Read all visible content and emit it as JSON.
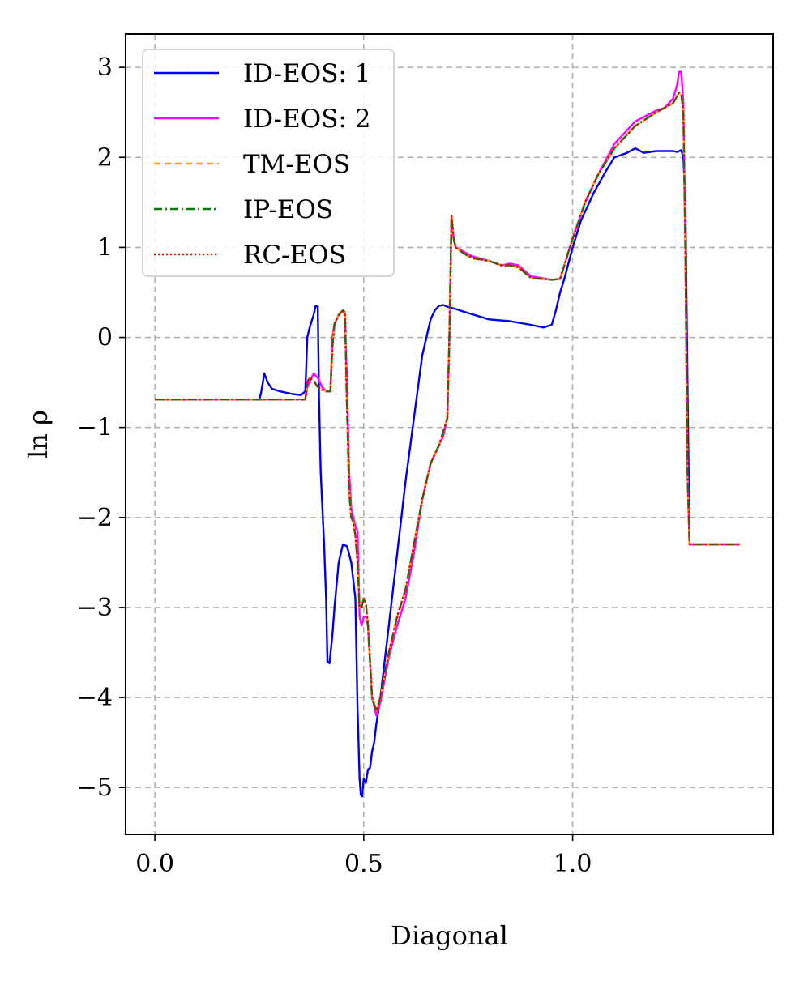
{
  "chart_data": {
    "type": "line",
    "title": "",
    "xlabel": "Diagonal",
    "ylabel": "ln ρ",
    "xlim": [
      -0.07,
      1.48
    ],
    "ylim": [
      -5.52,
      3.37
    ],
    "xticks": [
      0.0,
      0.5,
      1.0
    ],
    "xtick_labels": [
      "0.0",
      "0.5",
      "1.0"
    ],
    "yticks": [
      3,
      2,
      1,
      0,
      -1,
      -2,
      -3,
      -4,
      -5
    ],
    "ytick_labels": [
      "3",
      "2",
      "1",
      "0",
      "−1",
      "−2",
      "−3",
      "−4",
      "−5"
    ],
    "grid": true,
    "legend_position": "top-left",
    "series": [
      {
        "name": "ID-EOS: 1",
        "color": "#0000ee",
        "style": "solid",
        "x": [
          0.0,
          0.25,
          0.255,
          0.262,
          0.27,
          0.28,
          0.3,
          0.33,
          0.35,
          0.36,
          0.365,
          0.37,
          0.38,
          0.385,
          0.39,
          0.393,
          0.397,
          0.4,
          0.405,
          0.41,
          0.413,
          0.418,
          0.425,
          0.43,
          0.44,
          0.45,
          0.46,
          0.47,
          0.48,
          0.485,
          0.49,
          0.493,
          0.496,
          0.5,
          0.505,
          0.51,
          0.515,
          0.52,
          0.525,
          0.53,
          0.54,
          0.55,
          0.56,
          0.58,
          0.6,
          0.62,
          0.64,
          0.66,
          0.67,
          0.68,
          0.69,
          0.7,
          0.71,
          0.75,
          0.8,
          0.85,
          0.9,
          0.93,
          0.95,
          0.96,
          0.97,
          0.98,
          1.0,
          1.02,
          1.05,
          1.08,
          1.1,
          1.13,
          1.15,
          1.17,
          1.2,
          1.22,
          1.24,
          1.25,
          1.26,
          1.265,
          1.27,
          1.275,
          1.28,
          1.4
        ],
        "y": [
          -0.69,
          -0.69,
          -0.6,
          -0.4,
          -0.5,
          -0.57,
          -0.6,
          -0.63,
          -0.64,
          -0.6,
          0.0,
          0.1,
          0.25,
          0.35,
          0.34,
          -0.7,
          -1.5,
          -1.8,
          -2.3,
          -2.9,
          -3.6,
          -3.62,
          -3.3,
          -3.0,
          -2.5,
          -2.3,
          -2.32,
          -2.5,
          -2.9,
          -4.1,
          -4.9,
          -5.08,
          -5.1,
          -4.9,
          -4.95,
          -4.8,
          -4.78,
          -4.6,
          -4.5,
          -4.3,
          -4.0,
          -3.6,
          -3.2,
          -2.4,
          -1.6,
          -0.9,
          -0.2,
          0.2,
          0.3,
          0.35,
          0.36,
          0.34,
          0.33,
          0.27,
          0.2,
          0.18,
          0.14,
          0.11,
          0.14,
          0.3,
          0.5,
          0.65,
          1.0,
          1.3,
          1.6,
          1.85,
          2.0,
          2.05,
          2.1,
          2.05,
          2.07,
          2.07,
          2.07,
          2.06,
          2.08,
          2.0,
          1.5,
          -0.5,
          -2.3,
          -2.3
        ]
      },
      {
        "name": "ID-EOS: 2",
        "color": "#ff00ff",
        "style": "solid",
        "x": [
          0.0,
          0.36,
          0.365,
          0.37,
          0.38,
          0.39,
          0.4,
          0.41,
          0.42,
          0.425,
          0.43,
          0.44,
          0.45,
          0.455,
          0.46,
          0.465,
          0.47,
          0.475,
          0.48,
          0.485,
          0.49,
          0.495,
          0.5,
          0.505,
          0.51,
          0.515,
          0.52,
          0.53,
          0.54,
          0.55,
          0.56,
          0.58,
          0.6,
          0.62,
          0.64,
          0.66,
          0.68,
          0.69,
          0.7,
          0.705,
          0.71,
          0.715,
          0.72,
          0.74,
          0.76,
          0.8,
          0.83,
          0.85,
          0.87,
          0.9,
          0.95,
          0.97,
          1.0,
          1.03,
          1.06,
          1.1,
          1.15,
          1.2,
          1.22,
          1.24,
          1.25,
          1.255,
          1.26,
          1.265,
          1.27,
          1.275,
          1.28,
          1.4
        ],
        "y": [
          -0.69,
          -0.69,
          -0.55,
          -0.5,
          -0.4,
          -0.45,
          -0.55,
          -0.6,
          -0.6,
          0.0,
          0.15,
          0.25,
          0.3,
          0.25,
          -0.5,
          -1.5,
          -1.9,
          -2.0,
          -2.1,
          -2.15,
          -3.1,
          -3.2,
          -3.1,
          -3.1,
          -3.2,
          -3.6,
          -4.0,
          -4.2,
          -4.05,
          -3.8,
          -3.55,
          -3.2,
          -2.9,
          -2.4,
          -1.8,
          -1.4,
          -1.2,
          -1.1,
          -0.9,
          0.0,
          1.35,
          1.1,
          1.0,
          0.95,
          0.9,
          0.85,
          0.8,
          0.82,
          0.8,
          0.68,
          0.64,
          0.65,
          1.1,
          1.5,
          1.8,
          2.15,
          2.4,
          2.52,
          2.55,
          2.65,
          2.8,
          2.95,
          2.95,
          2.6,
          1.0,
          -1.5,
          -2.3,
          -2.3
        ]
      },
      {
        "name": "TM-EOS",
        "color": "#ffa500",
        "style": "dashed",
        "x": [
          0.0,
          0.36,
          0.365,
          0.37,
          0.38,
          0.39,
          0.4,
          0.41,
          0.42,
          0.425,
          0.43,
          0.44,
          0.45,
          0.455,
          0.46,
          0.465,
          0.47,
          0.475,
          0.48,
          0.485,
          0.49,
          0.495,
          0.5,
          0.505,
          0.51,
          0.515,
          0.52,
          0.53,
          0.54,
          0.55,
          0.56,
          0.58,
          0.6,
          0.62,
          0.64,
          0.66,
          0.68,
          0.69,
          0.7,
          0.705,
          0.71,
          0.715,
          0.72,
          0.74,
          0.76,
          0.8,
          0.83,
          0.85,
          0.87,
          0.9,
          0.95,
          0.97,
          1.0,
          1.03,
          1.06,
          1.1,
          1.15,
          1.2,
          1.22,
          1.24,
          1.25,
          1.255,
          1.26,
          1.265,
          1.27,
          1.275,
          1.28,
          1.4
        ],
        "y": [
          -0.69,
          -0.69,
          -0.5,
          -0.45,
          -0.48,
          -0.55,
          -0.58,
          -0.6,
          -0.6,
          -0.1,
          0.15,
          0.25,
          0.3,
          0.28,
          -0.8,
          -1.7,
          -2.0,
          -2.05,
          -2.2,
          -2.5,
          -3.0,
          -3.0,
          -2.9,
          -2.95,
          -3.2,
          -3.6,
          -4.0,
          -4.15,
          -4.0,
          -3.75,
          -3.5,
          -3.1,
          -2.8,
          -2.3,
          -1.8,
          -1.4,
          -1.2,
          -1.05,
          -0.9,
          0.0,
          1.35,
          1.1,
          1.0,
          0.93,
          0.88,
          0.85,
          0.8,
          0.8,
          0.78,
          0.66,
          0.64,
          0.65,
          1.1,
          1.5,
          1.8,
          2.1,
          2.35,
          2.5,
          2.55,
          2.6,
          2.68,
          2.72,
          2.7,
          2.5,
          1.0,
          -1.5,
          -2.3,
          -2.3
        ]
      },
      {
        "name": "IP-EOS",
        "color": "#008000",
        "style": "dashdot",
        "x": [
          0.0,
          0.36,
          0.365,
          0.37,
          0.38,
          0.39,
          0.4,
          0.41,
          0.42,
          0.425,
          0.43,
          0.44,
          0.45,
          0.455,
          0.46,
          0.465,
          0.47,
          0.475,
          0.48,
          0.485,
          0.49,
          0.495,
          0.5,
          0.505,
          0.51,
          0.515,
          0.52,
          0.53,
          0.54,
          0.55,
          0.56,
          0.58,
          0.6,
          0.62,
          0.64,
          0.66,
          0.68,
          0.69,
          0.7,
          0.705,
          0.71,
          0.715,
          0.72,
          0.74,
          0.76,
          0.8,
          0.83,
          0.85,
          0.87,
          0.9,
          0.95,
          0.97,
          1.0,
          1.03,
          1.06,
          1.1,
          1.15,
          1.2,
          1.22,
          1.24,
          1.25,
          1.255,
          1.26,
          1.265,
          1.27,
          1.275,
          1.28,
          1.4
        ],
        "y": [
          -0.69,
          -0.69,
          -0.5,
          -0.45,
          -0.48,
          -0.55,
          -0.58,
          -0.6,
          -0.6,
          -0.1,
          0.15,
          0.25,
          0.3,
          0.28,
          -0.8,
          -1.7,
          -2.0,
          -2.05,
          -2.2,
          -2.5,
          -3.0,
          -3.0,
          -2.9,
          -2.95,
          -3.2,
          -3.6,
          -4.0,
          -4.15,
          -4.0,
          -3.75,
          -3.5,
          -3.1,
          -2.8,
          -2.3,
          -1.8,
          -1.4,
          -1.2,
          -1.05,
          -0.9,
          0.0,
          1.35,
          1.1,
          1.0,
          0.93,
          0.88,
          0.85,
          0.8,
          0.8,
          0.78,
          0.66,
          0.64,
          0.65,
          1.1,
          1.5,
          1.8,
          2.1,
          2.35,
          2.5,
          2.55,
          2.6,
          2.68,
          2.72,
          2.7,
          2.5,
          1.0,
          -1.5,
          -2.3,
          -2.3
        ]
      },
      {
        "name": "RC-EOS",
        "color": "#ff0000",
        "style": "dotted",
        "x": [
          0.0,
          0.36,
          0.365,
          0.37,
          0.38,
          0.39,
          0.4,
          0.41,
          0.42,
          0.425,
          0.43,
          0.44,
          0.45,
          0.455,
          0.46,
          0.465,
          0.47,
          0.475,
          0.48,
          0.485,
          0.49,
          0.495,
          0.5,
          0.505,
          0.51,
          0.515,
          0.52,
          0.53,
          0.54,
          0.55,
          0.56,
          0.58,
          0.6,
          0.62,
          0.64,
          0.66,
          0.68,
          0.69,
          0.7,
          0.705,
          0.71,
          0.715,
          0.72,
          0.74,
          0.76,
          0.8,
          0.83,
          0.85,
          0.87,
          0.9,
          0.95,
          0.97,
          1.0,
          1.03,
          1.06,
          1.1,
          1.15,
          1.2,
          1.22,
          1.24,
          1.25,
          1.255,
          1.26,
          1.265,
          1.27,
          1.275,
          1.28,
          1.4
        ],
        "y": [
          -0.69,
          -0.69,
          -0.5,
          -0.45,
          -0.48,
          -0.55,
          -0.58,
          -0.6,
          -0.6,
          -0.1,
          0.15,
          0.25,
          0.3,
          0.28,
          -0.8,
          -1.7,
          -2.0,
          -2.05,
          -2.2,
          -2.5,
          -3.0,
          -3.0,
          -2.9,
          -2.95,
          -3.2,
          -3.6,
          -4.0,
          -4.15,
          -4.0,
          -3.75,
          -3.5,
          -3.1,
          -2.8,
          -2.3,
          -1.8,
          -1.4,
          -1.2,
          -1.05,
          -0.9,
          0.0,
          1.35,
          1.1,
          1.0,
          0.93,
          0.88,
          0.85,
          0.8,
          0.8,
          0.78,
          0.66,
          0.64,
          0.65,
          1.1,
          1.5,
          1.8,
          2.1,
          2.35,
          2.5,
          2.55,
          2.6,
          2.68,
          2.72,
          2.7,
          2.5,
          1.0,
          -1.5,
          -2.3,
          -2.3
        ]
      }
    ]
  }
}
